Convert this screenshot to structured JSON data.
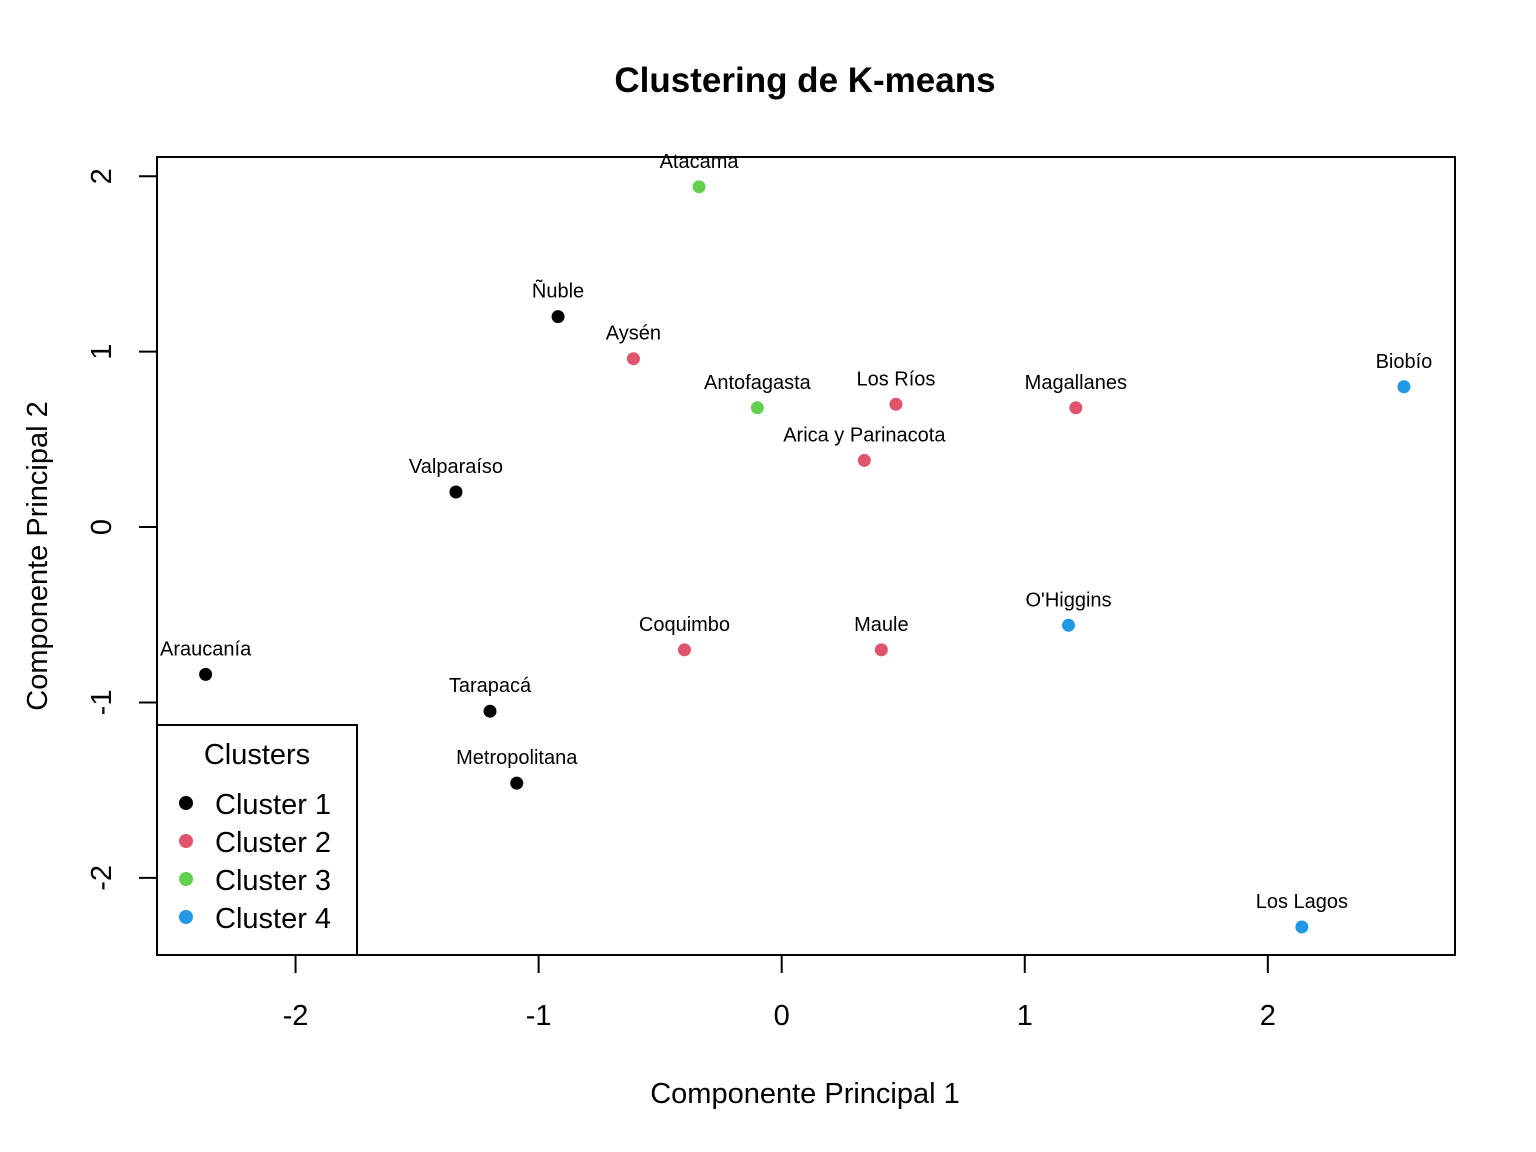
{
  "chart_data": {
    "type": "scatter",
    "title": "Clustering de K-means",
    "xlabel": "Componente Principal 1",
    "ylabel": "Componente Principal 2",
    "xlim": [
      -2.57,
      2.77
    ],
    "ylim": [
      -2.44,
      2.11
    ],
    "xticks": [
      -2,
      -1,
      0,
      1,
      2
    ],
    "yticks": [
      -2,
      -1,
      0,
      1,
      2
    ],
    "xtick_labels": [
      "-2",
      "-1",
      "0",
      "1",
      "2"
    ],
    "ytick_labels": [
      "-2",
      "-1",
      "0",
      "1",
      "2"
    ],
    "grid": false,
    "legend": {
      "title": "Clusters",
      "position": "bottom-left",
      "entries": [
        {
          "label": "Cluster 1",
          "color": "#000000"
        },
        {
          "label": "Cluster 2",
          "color": "#DF536B"
        },
        {
          "label": "Cluster 3",
          "color": "#61D04F"
        },
        {
          "label": "Cluster 4",
          "color": "#2297E6"
        }
      ]
    },
    "points": [
      {
        "label": "Ñuble",
        "x": -0.92,
        "y": 1.2,
        "cluster": 1
      },
      {
        "label": "Valparaíso",
        "x": -1.34,
        "y": 0.2,
        "cluster": 1
      },
      {
        "label": "Araucanía",
        "x": -2.37,
        "y": -0.84,
        "cluster": 1
      },
      {
        "label": "Tarapacá",
        "x": -1.2,
        "y": -1.05,
        "cluster": 1
      },
      {
        "label": "Metropolitana",
        "x": -1.09,
        "y": -1.46,
        "cluster": 1
      },
      {
        "label": "Aysén",
        "x": -0.61,
        "y": 0.96,
        "cluster": 2
      },
      {
        "label": "Los Ríos",
        "x": 0.47,
        "y": 0.7,
        "cluster": 2
      },
      {
        "label": "Magallanes",
        "x": 1.21,
        "y": 0.68,
        "cluster": 2
      },
      {
        "label": "Arica y Parinacota",
        "x": 0.34,
        "y": 0.38,
        "cluster": 2
      },
      {
        "label": "Coquimbo",
        "x": -0.4,
        "y": -0.7,
        "cluster": 2
      },
      {
        "label": "Maule",
        "x": 0.41,
        "y": -0.7,
        "cluster": 2
      },
      {
        "label": "Atacama",
        "x": -0.34,
        "y": 1.94,
        "cluster": 3
      },
      {
        "label": "Antofagasta",
        "x": -0.1,
        "y": 0.68,
        "cluster": 3
      },
      {
        "label": "Biobío",
        "x": 2.56,
        "y": 0.8,
        "cluster": 4
      },
      {
        "label": "O'Higgins",
        "x": 1.18,
        "y": -0.56,
        "cluster": 4
      },
      {
        "label": "Los Lagos",
        "x": 2.14,
        "y": -2.28,
        "cluster": 4
      }
    ]
  }
}
